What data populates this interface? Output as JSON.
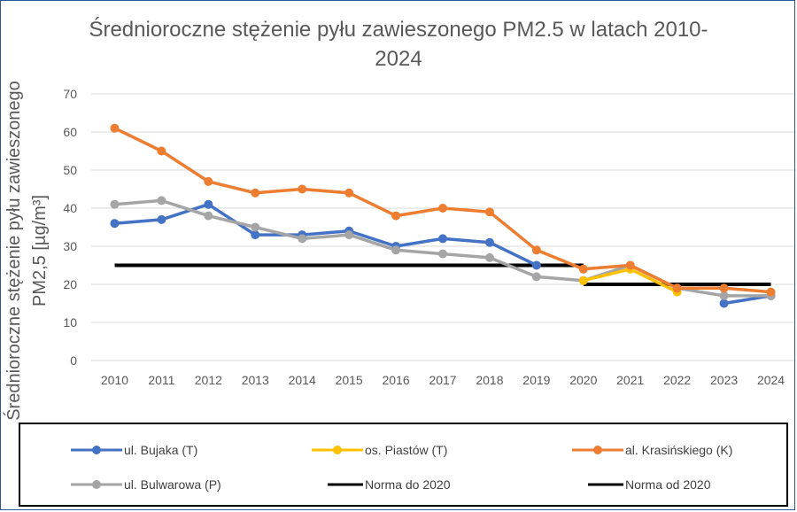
{
  "chart_data": {
    "type": "line",
    "title": "Średnioroczne stężenie pyłu zawieszonego PM2.5 w latach 2010-2024",
    "title_lines": [
      "Średnioroczne stężenie pyłu zawieszonego PM2.5 w latach 2010-",
      "2024"
    ],
    "ylabel_lines": [
      "Średnioroczne stężenie pyłu zawieszonego",
      "PM2,5 [µg/m³]"
    ],
    "xlabel": "",
    "ylim": [
      0,
      70
    ],
    "yticks": [
      0,
      10,
      20,
      30,
      40,
      50,
      60,
      70
    ],
    "ytick_labels": [
      "0",
      "10",
      "20",
      "30",
      "40",
      "50",
      "60",
      "70"
    ],
    "grid": true,
    "legend_position": "bottom",
    "categories": [
      "2010",
      "2011",
      "2012",
      "2013",
      "2014",
      "2015",
      "2016",
      "2017",
      "2018",
      "2019",
      "2020",
      "2021",
      "2022",
      "2023",
      "2024"
    ],
    "series": [
      {
        "name": "ul. Bujaka (T)",
        "color": "#4472c4",
        "marker": true,
        "values": [
          36,
          37,
          41,
          33,
          33,
          34,
          30,
          32,
          31,
          25,
          null,
          null,
          null,
          15,
          17
        ]
      },
      {
        "name": "os. Piastów (T)",
        "color": "#ffc000",
        "marker": true,
        "values": [
          null,
          null,
          null,
          null,
          null,
          null,
          null,
          null,
          null,
          null,
          21,
          24,
          18,
          null,
          null
        ]
      },
      {
        "name": "al. Krasińskiego (K)",
        "color": "#ed7d31",
        "marker": true,
        "values": [
          61,
          55,
          47,
          44,
          45,
          44,
          38,
          40,
          39,
          29,
          24,
          25,
          19,
          19,
          18
        ]
      },
      {
        "name": "ul. Bulwarowa (P)",
        "color": "#a5a5a5",
        "marker": true,
        "values": [
          41,
          42,
          38,
          35,
          32,
          33,
          29,
          28,
          27,
          22,
          21,
          25,
          19,
          17,
          17
        ]
      },
      {
        "name": "Norma do 2020",
        "color": "#000000",
        "marker": false,
        "values": [
          25,
          25,
          25,
          25,
          25,
          25,
          25,
          25,
          25,
          25,
          25,
          null,
          null,
          null,
          null
        ]
      },
      {
        "name": "Norma od 2020",
        "color": "#000000",
        "marker": false,
        "values": [
          null,
          null,
          null,
          null,
          null,
          null,
          null,
          null,
          null,
          null,
          20,
          20,
          20,
          20,
          20
        ]
      }
    ]
  }
}
